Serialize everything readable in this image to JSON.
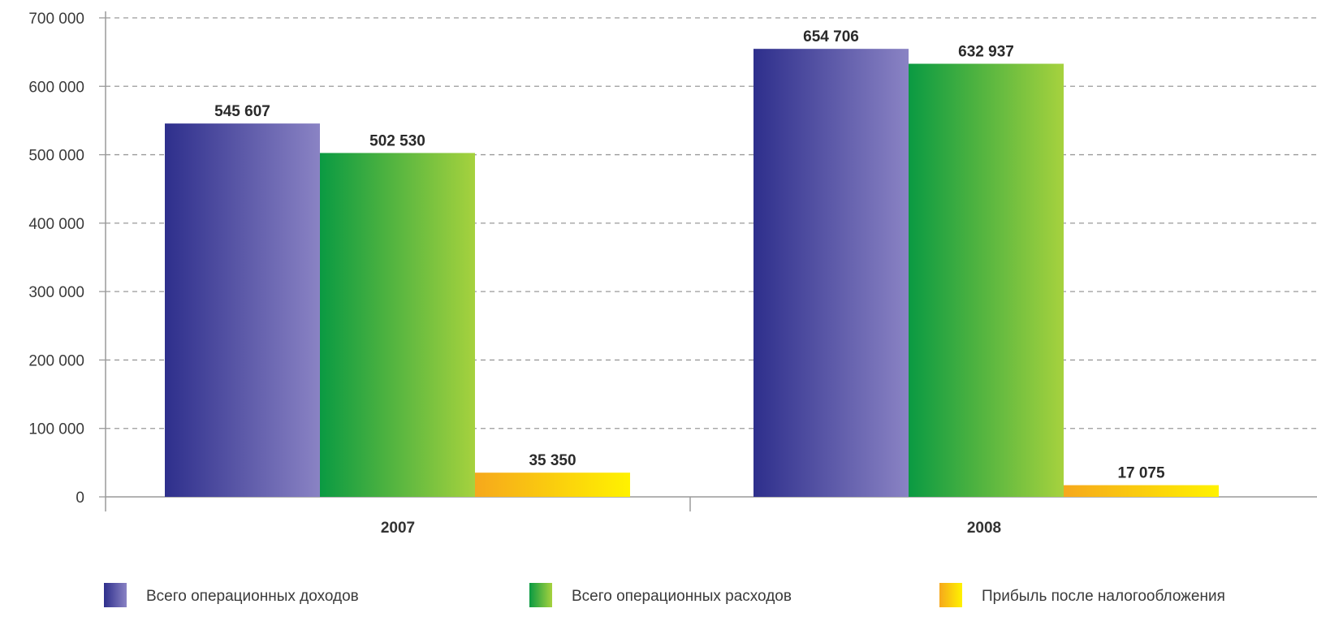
{
  "chart_data": {
    "type": "bar",
    "categories": [
      "2007",
      "2008"
    ],
    "series": [
      {
        "name": "Всего операционных доходов",
        "values": [
          545607,
          654706
        ],
        "labels": [
          "545 607",
          "654 706"
        ],
        "color_start": "#2e2f8c",
        "color_end": "#8a83c4"
      },
      {
        "name": "Всего операционных расходов",
        "values": [
          502530,
          632937
        ],
        "labels": [
          "502 530",
          "632 937"
        ],
        "color_start": "#0a9a42",
        "color_end": "#a6d23e"
      },
      {
        "name": "Прибыль после налогообложения",
        "values": [
          35350,
          17075
        ],
        "labels": [
          "35 350",
          "17 075"
        ],
        "color_start": "#f6a81c",
        "color_end": "#fff200"
      }
    ],
    "ylim": [
      0,
      700000
    ],
    "y_ticks": [
      0,
      100000,
      200000,
      300000,
      400000,
      500000,
      600000,
      700000
    ],
    "y_tick_labels": [
      "0",
      "100 000",
      "200 000",
      "300 000",
      "400 000",
      "500 000",
      "600 000",
      "700 000"
    ],
    "grid": true,
    "legend_position": "bottom",
    "title": "",
    "xlabel": "",
    "ylabel": ""
  }
}
